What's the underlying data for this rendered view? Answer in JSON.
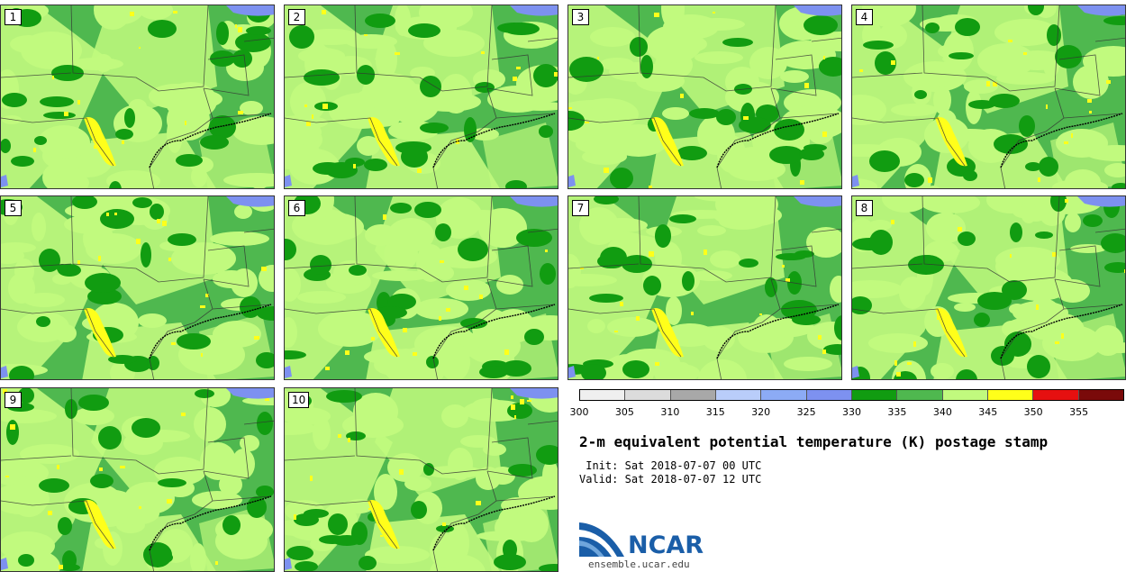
{
  "panels": [
    "1",
    "2",
    "3",
    "4",
    "5",
    "6",
    "7",
    "8",
    "9",
    "10"
  ],
  "colorbar": {
    "colors": [
      "#efefef",
      "#dcdcdc",
      "#a8a8a8",
      "#b9cdfa",
      "#8cabf5",
      "#7d91f0",
      "#119c11",
      "#4fb84f",
      "#c1fa7e",
      "#ffff1a",
      "#e61010",
      "#7a0a0a"
    ],
    "ticks": [
      "300",
      "305",
      "310",
      "315",
      "320",
      "325",
      "330",
      "335",
      "340",
      "345",
      "350",
      "355"
    ]
  },
  "title": "2-m equivalent potential temperature (K) postage stamp",
  "init_label": "Init:",
  "init": "Sat 2018-07-07 00 UTC",
  "valid_label": "Valid:",
  "valid": "Sat 2018-07-07 12 UTC",
  "logo": {
    "text": "NCAR",
    "url": "ensemble.ucar.edu"
  }
}
